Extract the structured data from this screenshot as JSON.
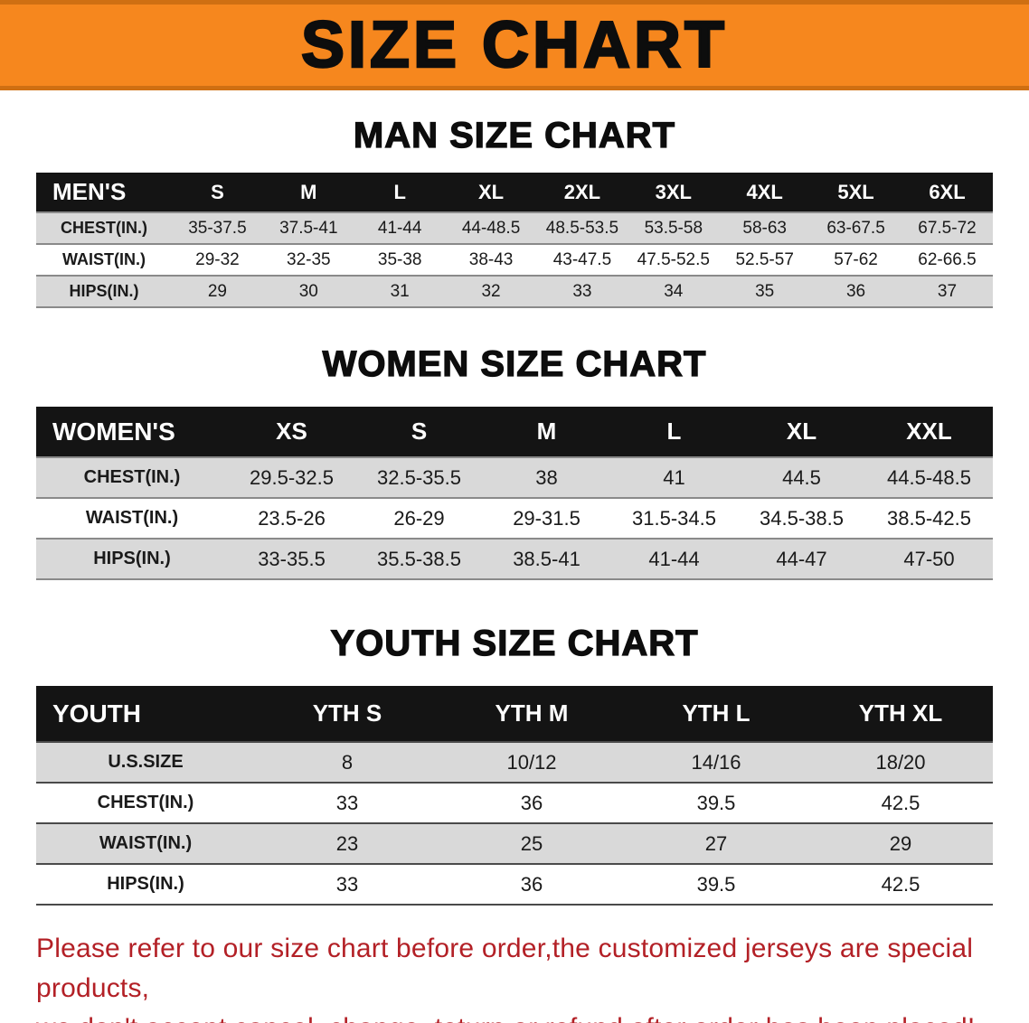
{
  "banner": {
    "title": "SIZE CHART",
    "bg_color": "#f6871e"
  },
  "sections": [
    {
      "heading": "MAN SIZE CHART",
      "table": {
        "header": [
          "MEN'S",
          "S",
          "M",
          "L",
          "XL",
          "2XL",
          "3XL",
          "4XL",
          "5XL",
          "6XL"
        ],
        "rows": [
          [
            "CHEST(IN.)",
            "35-37.5",
            "37.5-41",
            "41-44",
            "44-48.5",
            "48.5-53.5",
            "53.5-58",
            "58-63",
            "63-67.5",
            "67.5-72"
          ],
          [
            "WAIST(IN.)",
            "29-32",
            "32-35",
            "35-38",
            "38-43",
            "43-47.5",
            "47.5-52.5",
            "52.5-57",
            "57-62",
            "62-66.5"
          ],
          [
            "HIPS(IN.)",
            "29",
            "30",
            "31",
            "32",
            "33",
            "34",
            "35",
            "36",
            "37"
          ]
        ]
      }
    },
    {
      "heading": "WOMEN SIZE CHART",
      "table": {
        "header": [
          "WOMEN'S",
          "XS",
          "S",
          "M",
          "L",
          "XL",
          "XXL"
        ],
        "rows": [
          [
            "CHEST(IN.)",
            "29.5-32.5",
            "32.5-35.5",
            "38",
            "41",
            "44.5",
            "44.5-48.5"
          ],
          [
            "WAIST(IN.)",
            "23.5-26",
            "26-29",
            "29-31.5",
            "31.5-34.5",
            "34.5-38.5",
            "38.5-42.5"
          ],
          [
            "HIPS(IN.)",
            "33-35.5",
            "35.5-38.5",
            "38.5-41",
            "41-44",
            "44-47",
            "47-50"
          ]
        ]
      }
    },
    {
      "heading": "YOUTH SIZE CHART",
      "table": {
        "header": [
          "YOUTH",
          "YTH S",
          "YTH M",
          "YTH L",
          "YTH XL"
        ],
        "rows": [
          [
            "U.S.SIZE",
            "8",
            "10/12",
            "14/16",
            "18/20"
          ],
          [
            "CHEST(IN.)",
            "33",
            "36",
            "39.5",
            "42.5"
          ],
          [
            "WAIST(IN.)",
            "23",
            "25",
            "27",
            "29"
          ],
          [
            "HIPS(IN.)",
            "33",
            "36",
            "39.5",
            "42.5"
          ]
        ]
      }
    }
  ],
  "footer": {
    "line1": "Please refer to our size chart before order,the customized jerseys are special products,",
    "line2": "we don't accept cancel, change, teturn or refund after order has been placed!",
    "text_color": "#b32026"
  }
}
